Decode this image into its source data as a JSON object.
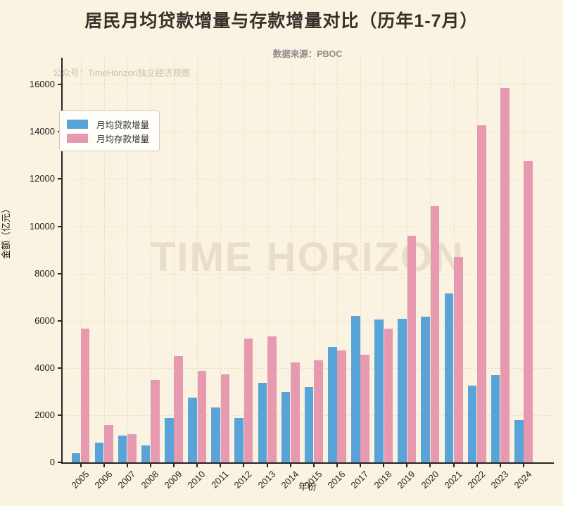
{
  "title": "居民月均贷款增量与存款增量对比（历年1-7月）",
  "subtitle": "数据来源：PBOC",
  "watermark_small": "公众号：TimeHorizon独立经济观察",
  "watermark_large": "TIME HORIZON",
  "colors": {
    "loan": "#58a3d7",
    "deposit": "#e799b0",
    "background": "#faf3e1",
    "grid": "#e8dfc8",
    "axis": "#262626",
    "title_text": "#35312a",
    "subtitle_text": "#8c8c8c",
    "watermark_text": "#c9c0ab"
  },
  "legend": {
    "items": [
      {
        "label": "月均贷款增量",
        "series_key": "loan"
      },
      {
        "label": "月均存款增量",
        "series_key": "deposit"
      }
    ],
    "position": "upper left"
  },
  "chart_data": {
    "type": "bar",
    "title": "居民月均贷款增量与存款增量对比（历年1-7月）",
    "xlabel": "年份",
    "ylabel": "金额（亿元）",
    "categories": [
      2005,
      2006,
      2007,
      2008,
      2009,
      2010,
      2011,
      2012,
      2013,
      2014,
      2015,
      2016,
      2017,
      2018,
      2019,
      2020,
      2021,
      2022,
      2023,
      2024
    ],
    "series": [
      {
        "name": "月均贷款增量",
        "color": "#58a3d7",
        "values": [
          400,
          840,
          1130,
          720,
          1890,
          2730,
          2330,
          1890,
          3380,
          2980,
          3200,
          4880,
          6190,
          6050,
          6090,
          6170,
          7150,
          3260,
          3700,
          1780
        ]
      },
      {
        "name": "月均存款增量",
        "color": "#e799b0",
        "values": [
          5660,
          1590,
          1180,
          3490,
          4510,
          3870,
          3740,
          5250,
          5350,
          4240,
          4310,
          4730,
          4560,
          5670,
          9590,
          10860,
          8700,
          14270,
          15860,
          12760
        ]
      }
    ],
    "ylim": [
      0,
      17100
    ],
    "yticks": [
      0,
      2000,
      4000,
      6000,
      8000,
      10000,
      12000,
      14000,
      16000
    ],
    "grid": true,
    "grid_style": "dashed",
    "legend_position": "upper left"
  }
}
